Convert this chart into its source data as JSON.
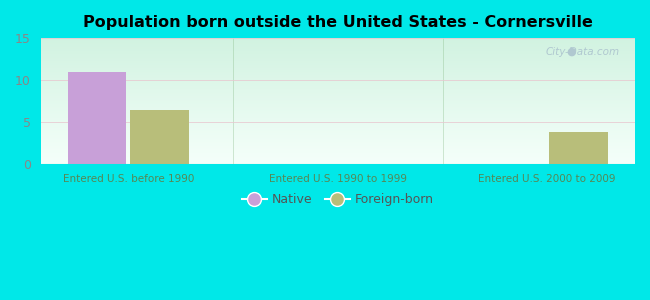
{
  "title": "Population born outside the United States - Cornersville",
  "groups": [
    "Entered U.S. before 1990",
    "Entered U.S. 1990 to 1999",
    "Entered U.S. 2000 to 2009"
  ],
  "native_values": [
    11,
    0,
    0
  ],
  "foreign_values": [
    6.5,
    0,
    3.8
  ],
  "native_color": "#c8a0d8",
  "foreign_color": "#b8be7a",
  "ylim": [
    0,
    15
  ],
  "yticks": [
    0,
    5,
    10,
    15
  ],
  "outer_bg": "#00e8e8",
  "watermark": "City-Data.com",
  "legend_native": "Native",
  "legend_foreign": "Foreign-born",
  "bar_width": 0.28,
  "xtick_color": "#558855",
  "ytick_color": "#888888",
  "grid_color": "#ddeecc"
}
